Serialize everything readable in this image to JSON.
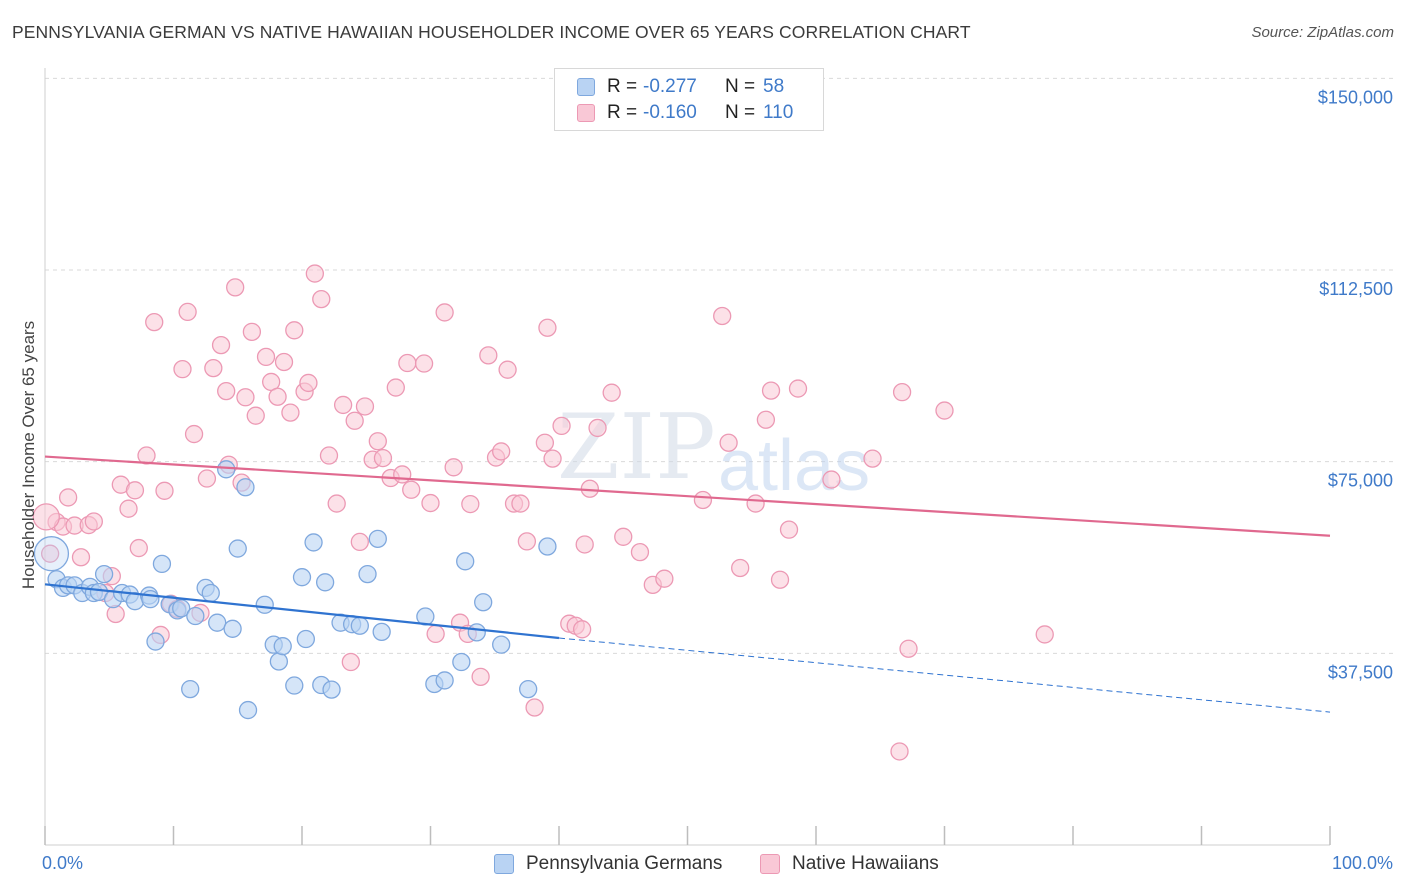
{
  "title": "PENNSYLVANIA GERMAN VS NATIVE HAWAIIAN HOUSEHOLDER INCOME OVER 65 YEARS CORRELATION CHART",
  "source": "Source: ZipAtlas.com",
  "watermark": {
    "zip": "ZIP",
    "atlas": "atlas"
  },
  "stats": {
    "r_label": "R =",
    "n_label": "N =",
    "rows": [
      {
        "r": "-0.277",
        "n": "58"
      },
      {
        "r": "-0.160",
        "n": "110"
      }
    ]
  },
  "colors": {
    "blue_fill": "#b9d3f3",
    "blue_stroke": "#7fa8de",
    "blue_line": "#2f73d0",
    "pink_fill": "#f9c8d6",
    "pink_stroke": "#ec99b4",
    "pink_line": "#e0698f",
    "tick_text": "#3f7ac9",
    "grid": "#d9d9d9"
  },
  "chart_data": {
    "type": "scatter",
    "title": "PENNSYLVANIA GERMAN VS NATIVE HAWAIIAN HOUSEHOLDER INCOME OVER 65 YEARS CORRELATION CHART",
    "xlabel": "",
    "ylabel": "Householder Income Over 65 years",
    "xlim": [
      0,
      100
    ],
    "ylim": [
      0,
      155000
    ],
    "x_tick_labels": [
      "0.0%",
      "100.0%"
    ],
    "y_ticks": [
      37500,
      75000,
      112500,
      150000
    ],
    "y_tick_labels": [
      "$37,500",
      "$75,000",
      "$112,500",
      "$150,000"
    ],
    "grid": "horizontal dashed",
    "legend_position": "bottom",
    "series": [
      {
        "name": "Pennsylvania Germans",
        "color": "#b9d3f3",
        "r": -0.277,
        "n": 58,
        "trend": {
          "x0": 0,
          "y0": 51000,
          "x1": 40,
          "y1": 40500,
          "dashed_to_x": 100,
          "dashed_to_y": 26000
        },
        "points": [
          [
            0.5,
            57000
          ],
          [
            0.9,
            52000
          ],
          [
            1.4,
            50300
          ],
          [
            1.8,
            50800
          ],
          [
            2.3,
            50800
          ],
          [
            2.9,
            49300
          ],
          [
            3.5,
            50500
          ],
          [
            3.8,
            49300
          ],
          [
            4.2,
            49500
          ],
          [
            4.6,
            53000
          ],
          [
            5.3,
            48100
          ],
          [
            6.0,
            49300
          ],
          [
            6.6,
            49000
          ],
          [
            7.0,
            47700
          ],
          [
            8.1,
            48800
          ],
          [
            8.2,
            48100
          ],
          [
            8.6,
            39800
          ],
          [
            9.1,
            55000
          ],
          [
            9.7,
            47100
          ],
          [
            10.3,
            45900
          ],
          [
            10.6,
            46300
          ],
          [
            11.3,
            30500
          ],
          [
            11.7,
            44800
          ],
          [
            12.5,
            50300
          ],
          [
            12.9,
            49300
          ],
          [
            13.4,
            43500
          ],
          [
            14.1,
            73500
          ],
          [
            14.6,
            42300
          ],
          [
            15.0,
            58000
          ],
          [
            15.6,
            70000
          ],
          [
            15.8,
            26400
          ],
          [
            17.1,
            47000
          ],
          [
            17.8,
            39200
          ],
          [
            18.2,
            35900
          ],
          [
            18.5,
            38900
          ],
          [
            19.4,
            31200
          ],
          [
            20.0,
            52400
          ],
          [
            20.3,
            40300
          ],
          [
            20.9,
            59200
          ],
          [
            21.5,
            31300
          ],
          [
            21.8,
            51400
          ],
          [
            22.3,
            30400
          ],
          [
            23.0,
            43500
          ],
          [
            23.9,
            43200
          ],
          [
            24.5,
            42900
          ],
          [
            25.1,
            53000
          ],
          [
            25.9,
            59900
          ],
          [
            26.2,
            41700
          ],
          [
            29.6,
            44700
          ],
          [
            30.3,
            31500
          ],
          [
            31.1,
            32200
          ],
          [
            32.4,
            35800
          ],
          [
            32.7,
            55500
          ],
          [
            33.6,
            41600
          ],
          [
            34.1,
            47500
          ],
          [
            35.5,
            39200
          ],
          [
            37.6,
            30500
          ],
          [
            39.1,
            58400
          ]
        ]
      },
      {
        "name": "Native Hawaiians",
        "color": "#f9c8d6",
        "r": -0.16,
        "n": 110,
        "trend": {
          "x0": 0,
          "y0": 76000,
          "x1": 100,
          "y1": 60500
        },
        "points": [
          [
            0.4,
            57000
          ],
          [
            0.9,
            63200
          ],
          [
            1.4,
            62300
          ],
          [
            1.8,
            68000
          ],
          [
            2.3,
            62500
          ],
          [
            2.8,
            56300
          ],
          [
            3.4,
            62600
          ],
          [
            3.8,
            63300
          ],
          [
            4.7,
            49300
          ],
          [
            5.2,
            52600
          ],
          [
            5.5,
            45200
          ],
          [
            5.9,
            70500
          ],
          [
            6.5,
            65800
          ],
          [
            7.0,
            69400
          ],
          [
            7.3,
            58100
          ],
          [
            7.9,
            76200
          ],
          [
            8.5,
            102300
          ],
          [
            9.0,
            41100
          ],
          [
            9.3,
            69300
          ],
          [
            9.8,
            47200
          ],
          [
            10.3,
            46200
          ],
          [
            10.7,
            93100
          ],
          [
            11.1,
            104300
          ],
          [
            11.6,
            80400
          ],
          [
            12.1,
            45400
          ],
          [
            12.6,
            71700
          ],
          [
            13.1,
            93300
          ],
          [
            13.7,
            97800
          ],
          [
            14.1,
            88800
          ],
          [
            14.3,
            74400
          ],
          [
            14.8,
            109100
          ],
          [
            15.3,
            70900
          ],
          [
            15.6,
            87600
          ],
          [
            16.1,
            100400
          ],
          [
            16.4,
            84000
          ],
          [
            17.2,
            95500
          ],
          [
            17.6,
            90600
          ],
          [
            18.1,
            87700
          ],
          [
            18.6,
            94500
          ],
          [
            19.1,
            84600
          ],
          [
            19.4,
            100700
          ],
          [
            20.2,
            88700
          ],
          [
            20.5,
            90400
          ],
          [
            21.0,
            111800
          ],
          [
            21.5,
            106800
          ],
          [
            22.1,
            76200
          ],
          [
            22.7,
            66800
          ],
          [
            23.2,
            86100
          ],
          [
            23.8,
            35800
          ],
          [
            24.1,
            83000
          ],
          [
            24.5,
            59300
          ],
          [
            24.9,
            85800
          ],
          [
            25.5,
            75400
          ],
          [
            25.9,
            79000
          ],
          [
            26.3,
            75700
          ],
          [
            26.9,
            71800
          ],
          [
            27.3,
            89500
          ],
          [
            27.8,
            72500
          ],
          [
            28.2,
            94300
          ],
          [
            28.5,
            69500
          ],
          [
            29.5,
            94200
          ],
          [
            30.0,
            66900
          ],
          [
            30.4,
            41300
          ],
          [
            31.1,
            104200
          ],
          [
            31.8,
            73900
          ],
          [
            32.3,
            43500
          ],
          [
            32.9,
            41300
          ],
          [
            33.1,
            66700
          ],
          [
            33.9,
            32900
          ],
          [
            34.5,
            95800
          ],
          [
            35.1,
            75800
          ],
          [
            35.5,
            77000
          ],
          [
            36.0,
            93000
          ],
          [
            36.5,
            66800
          ],
          [
            37.0,
            66800
          ],
          [
            37.5,
            59400
          ],
          [
            38.1,
            26900
          ],
          [
            38.9,
            78700
          ],
          [
            39.1,
            101200
          ],
          [
            39.5,
            75600
          ],
          [
            40.2,
            82000
          ],
          [
            40.8,
            43300
          ],
          [
            41.3,
            42900
          ],
          [
            41.8,
            42200
          ],
          [
            42.0,
            58800
          ],
          [
            42.4,
            69700
          ],
          [
            43.0,
            81600
          ],
          [
            44.1,
            88500
          ],
          [
            45.0,
            60300
          ],
          [
            46.3,
            57300
          ],
          [
            47.3,
            50900
          ],
          [
            48.2,
            52100
          ],
          [
            51.2,
            67500
          ],
          [
            52.7,
            103500
          ],
          [
            53.2,
            78700
          ],
          [
            54.1,
            54200
          ],
          [
            55.3,
            66800
          ],
          [
            56.1,
            83200
          ],
          [
            56.5,
            88900
          ],
          [
            57.2,
            51900
          ],
          [
            57.9,
            61700
          ],
          [
            58.6,
            89300
          ],
          [
            61.2,
            71500
          ],
          [
            64.4,
            75600
          ],
          [
            66.5,
            18300
          ],
          [
            66.7,
            88600
          ],
          [
            67.2,
            38400
          ],
          [
            70.0,
            85000
          ],
          [
            77.8,
            41200
          ],
          [
            0.1,
            64200
          ]
        ]
      }
    ]
  }
}
